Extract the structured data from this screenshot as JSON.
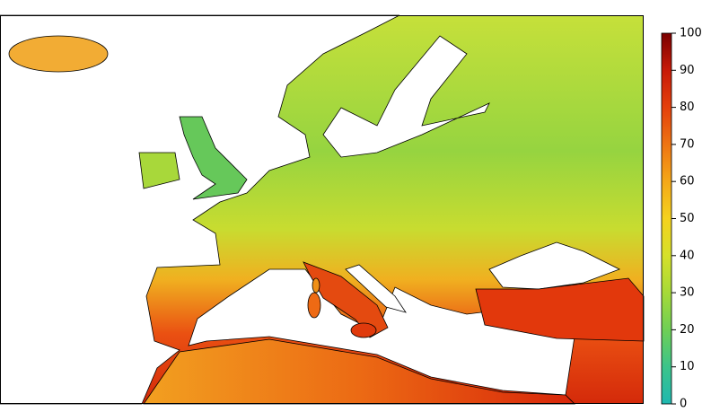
{
  "map": {
    "colorbar": {
      "range": [
        0,
        100
      ],
      "ticks": [
        0,
        10,
        20,
        30,
        40,
        50,
        60,
        70,
        80,
        90,
        100
      ],
      "colors": [
        "#1fb8b0",
        "#3cc48a",
        "#6fcf55",
        "#a6da38",
        "#d6e02a",
        "#f5d21e",
        "#f5a818",
        "#ee7412",
        "#e4400c",
        "#c81a08",
        "#7a0000"
      ]
    }
  }
}
